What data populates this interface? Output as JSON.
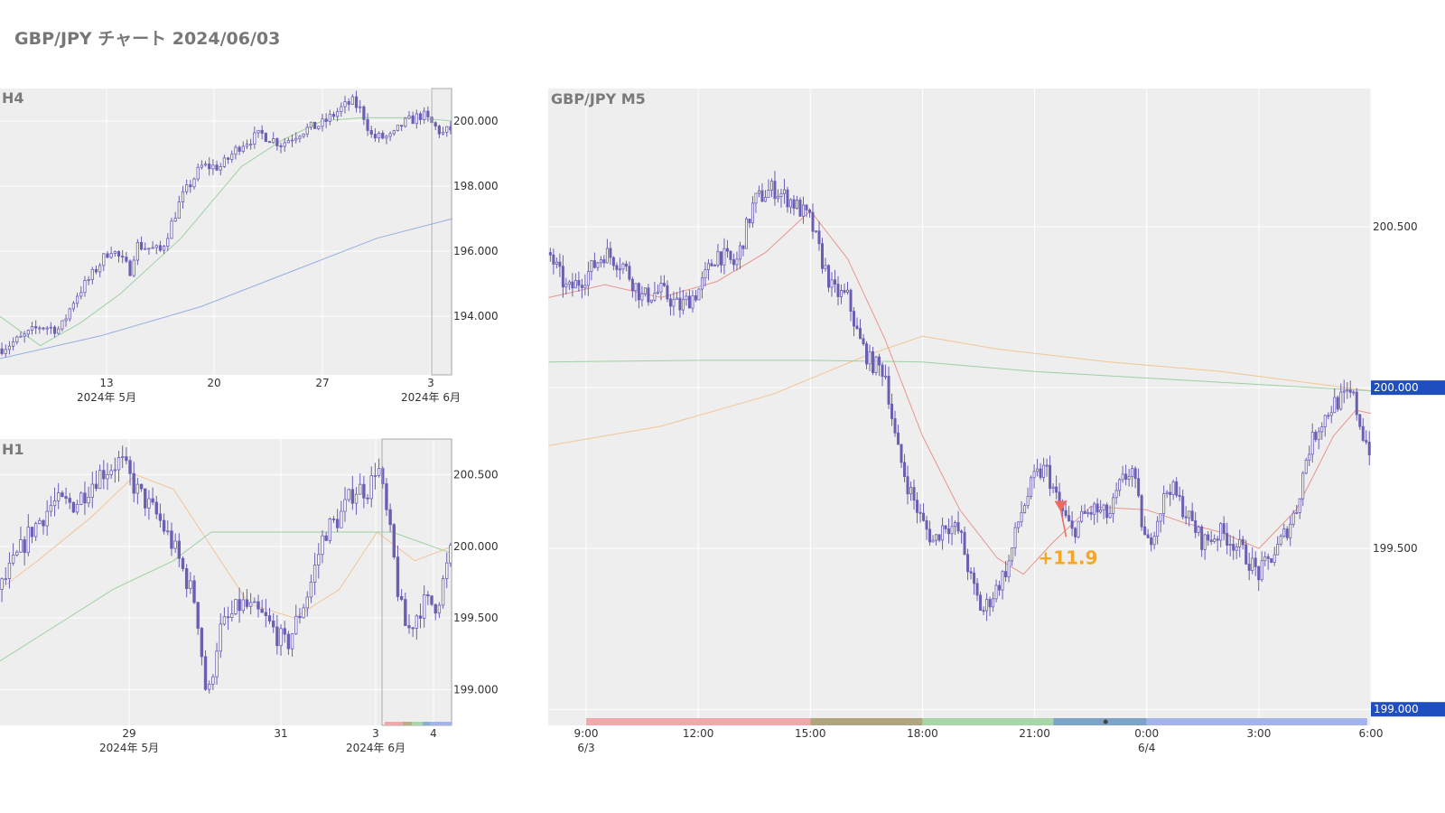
{
  "title": "GBP/JPY チャート 2024/06/03",
  "colors": {
    "plot_bg": "#eeeeee",
    "grid": "#ffffff",
    "candle": "#6a5fb3",
    "ma_red": "#e8948f",
    "ma_green": "#9fcfa3",
    "ma_orange": "#f2c597",
    "ma_blue": "#98aee0",
    "price_tag_bg": "#1f4fbf",
    "signal_arrow": "#ee6a5e",
    "profit_label": "#f5a623"
  },
  "chart_data": [
    {
      "id": "h4",
      "type": "candlestick",
      "title": "H4",
      "y_ticks": [
        "200.000",
        "198.000",
        "196.000",
        "194.000"
      ],
      "y_tick_values": [
        200,
        198,
        196,
        194
      ],
      "ylim": [
        192.2,
        201.0
      ],
      "x_ticks": [
        "13",
        "20",
        "27",
        "3"
      ],
      "x_sublabels": [
        "2024年 5月",
        "2024年 6月"
      ],
      "ohlc_path": [
        [
          0,
          193.0
        ],
        [
          4,
          193.3
        ],
        [
          8,
          193.7
        ],
        [
          12,
          193.6
        ],
        [
          15,
          194.6
        ],
        [
          18,
          195.2
        ],
        [
          22,
          196.1
        ],
        [
          26,
          195.4
        ],
        [
          27,
          196.2
        ],
        [
          32,
          196.0
        ],
        [
          36,
          197.6
        ],
        [
          40,
          198.6
        ],
        [
          44,
          198.6
        ],
        [
          48,
          199.3
        ],
        [
          52,
          199.6
        ],
        [
          56,
          199.3
        ],
        [
          60,
          199.7
        ],
        [
          64,
          199.9
        ],
        [
          68,
          200.4
        ],
        [
          70,
          200.6
        ],
        [
          72,
          200.3
        ],
        [
          74,
          199.5
        ],
        [
          78,
          199.5
        ],
        [
          80,
          199.9
        ],
        [
          84,
          200.2
        ],
        [
          88,
          199.6
        ],
        [
          90,
          199.8
        ]
      ],
      "ma_fast_path": [
        [
          0,
          194.0
        ],
        [
          8,
          193.1
        ],
        [
          16,
          193.8
        ],
        [
          24,
          194.7
        ],
        [
          36,
          196.4
        ],
        [
          48,
          198.6
        ],
        [
          56,
          199.4
        ],
        [
          64,
          200.0
        ],
        [
          72,
          200.1
        ],
        [
          82,
          200.1
        ],
        [
          90,
          200.0
        ]
      ],
      "ma_slow_path": [
        [
          0,
          192.7
        ],
        [
          20,
          193.4
        ],
        [
          40,
          194.3
        ],
        [
          60,
          195.5
        ],
        [
          75,
          196.4
        ],
        [
          90,
          197.0
        ]
      ],
      "highlight_last_bars": 5
    },
    {
      "id": "h1",
      "type": "candlestick",
      "title": "H1",
      "y_ticks": [
        "200.500",
        "200.000",
        "199.500",
        "199.000"
      ],
      "y_tick_values": [
        200.5,
        200,
        199.5,
        199
      ],
      "ylim": [
        198.75,
        200.75
      ],
      "x_ticks": [
        "29",
        "31",
        "3",
        "4"
      ],
      "x_sublabels": [
        "2024年 5月",
        "2024年 6月"
      ],
      "ohlc_path": [
        [
          0,
          199.7
        ],
        [
          4,
          199.9
        ],
        [
          8,
          200.1
        ],
        [
          14,
          200.3
        ],
        [
          20,
          200.3
        ],
        [
          26,
          200.5
        ],
        [
          32,
          200.6
        ],
        [
          36,
          200.4
        ],
        [
          42,
          200.2
        ],
        [
          46,
          200.0
        ],
        [
          52,
          199.6
        ],
        [
          55,
          198.9
        ],
        [
          58,
          199.4
        ],
        [
          64,
          199.6
        ],
        [
          70,
          199.5
        ],
        [
          76,
          199.3
        ],
        [
          82,
          199.7
        ],
        [
          86,
          200.1
        ],
        [
          90,
          200.2
        ],
        [
          94,
          200.4
        ],
        [
          98,
          200.4
        ],
        [
          100,
          200.6
        ],
        [
          104,
          200.0
        ],
        [
          106,
          199.6
        ],
        [
          108,
          199.4
        ],
        [
          112,
          199.6
        ],
        [
          116,
          199.6
        ],
        [
          120,
          200.0
        ]
      ],
      "ma_fast_path": [
        [
          0,
          199.7
        ],
        [
          10,
          199.9
        ],
        [
          24,
          200.2
        ],
        [
          36,
          200.5
        ],
        [
          46,
          200.4
        ],
        [
          56,
          200.0
        ],
        [
          66,
          199.6
        ],
        [
          78,
          199.5
        ],
        [
          90,
          199.7
        ],
        [
          100,
          200.1
        ],
        [
          110,
          199.9
        ],
        [
          120,
          200.0
        ]
      ],
      "ma_slow_path": [
        [
          0,
          199.2
        ],
        [
          12,
          199.4
        ],
        [
          30,
          199.7
        ],
        [
          46,
          199.9
        ],
        [
          56,
          200.1
        ],
        [
          70,
          200.1
        ],
        [
          90,
          200.1
        ],
        [
          104,
          200.1
        ],
        [
          120,
          199.95
        ]
      ],
      "session_bar": true,
      "highlight_last_bars": 19
    },
    {
      "id": "m5",
      "type": "candlestick",
      "title": "GBP/JPY M5",
      "y_ticks": [
        "200.500",
        "199.500"
      ],
      "y_tick_values": [
        200.5,
        199.5
      ],
      "price_tags": [
        "200.000",
        "199.000"
      ],
      "price_tag_values": [
        200.0,
        199.0
      ],
      "ylim": [
        198.95,
        200.93
      ],
      "x_ticks": [
        "9:00",
        "12:00",
        "15:00",
        "18:00",
        "21:00",
        "0:00",
        "3:00",
        "6:00"
      ],
      "x_sub_ticks": [
        "6/3",
        "6/4"
      ],
      "x_range_hours": [
        8.0,
        30.0
      ],
      "ohlc_path": [
        [
          8.0,
          200.42
        ],
        [
          8.5,
          200.3
        ],
        [
          9.0,
          200.35
        ],
        [
          9.5,
          200.42
        ],
        [
          10.0,
          200.38
        ],
        [
          10.5,
          200.28
        ],
        [
          11.0,
          200.3
        ],
        [
          11.5,
          200.25
        ],
        [
          12.0,
          200.3
        ],
        [
          12.5,
          200.42
        ],
        [
          13.0,
          200.38
        ],
        [
          13.5,
          200.58
        ],
        [
          14.0,
          200.62
        ],
        [
          14.5,
          200.58
        ],
        [
          15.0,
          200.52
        ],
        [
          15.3,
          200.4
        ],
        [
          15.6,
          200.3
        ],
        [
          16.0,
          200.28
        ],
        [
          16.3,
          200.15
        ],
        [
          16.6,
          200.08
        ],
        [
          17.0,
          200.05
        ],
        [
          17.3,
          199.82
        ],
        [
          17.6,
          199.7
        ],
        [
          18.0,
          199.58
        ],
        [
          18.3,
          199.52
        ],
        [
          18.6,
          199.58
        ],
        [
          19.0,
          199.55
        ],
        [
          19.3,
          199.4
        ],
        [
          19.6,
          199.3
        ],
        [
          20.0,
          199.38
        ],
        [
          20.3,
          199.45
        ],
        [
          20.6,
          199.6
        ],
        [
          21.0,
          199.72
        ],
        [
          21.3,
          199.75
        ],
        [
          21.6,
          199.65
        ],
        [
          22.0,
          199.55
        ],
        [
          22.3,
          199.6
        ],
        [
          22.6,
          199.62
        ],
        [
          23.0,
          199.6
        ],
        [
          23.3,
          199.7
        ],
        [
          23.6,
          199.75
        ],
        [
          24.0,
          199.5
        ],
        [
          24.3,
          199.6
        ],
        [
          24.6,
          199.7
        ],
        [
          25.0,
          199.62
        ],
        [
          25.5,
          199.52
        ],
        [
          26.0,
          199.55
        ],
        [
          26.5,
          199.5
        ],
        [
          27.0,
          199.42
        ],
        [
          27.5,
          199.5
        ],
        [
          28.0,
          199.62
        ],
        [
          28.3,
          199.8
        ],
        [
          28.6,
          199.88
        ],
        [
          29.0,
          199.95
        ],
        [
          29.5,
          199.98
        ],
        [
          29.8,
          199.85
        ],
        [
          30.0,
          199.8
        ]
      ],
      "ma_red_path": [
        [
          8.0,
          200.28
        ],
        [
          9.5,
          200.32
        ],
        [
          11.0,
          200.28
        ],
        [
          12.5,
          200.33
        ],
        [
          13.8,
          200.42
        ],
        [
          15.0,
          200.55
        ],
        [
          16.0,
          200.4
        ],
        [
          17.0,
          200.15
        ],
        [
          18.0,
          199.85
        ],
        [
          19.0,
          199.62
        ],
        [
          20.0,
          199.47
        ],
        [
          20.7,
          199.42
        ],
        [
          21.5,
          199.52
        ],
        [
          22.5,
          199.63
        ],
        [
          24.0,
          199.62
        ],
        [
          25.0,
          199.58
        ],
        [
          26.0,
          199.55
        ],
        [
          27.0,
          199.5
        ],
        [
          28.0,
          199.62
        ],
        [
          29.0,
          199.85
        ],
        [
          29.6,
          199.93
        ],
        [
          30.0,
          199.92
        ]
      ],
      "ma_green_path": [
        [
          8.0,
          200.08
        ],
        [
          12.0,
          200.085
        ],
        [
          15.0,
          200.085
        ],
        [
          18.0,
          200.08
        ],
        [
          21.0,
          200.05
        ],
        [
          24.0,
          200.03
        ],
        [
          27.0,
          200.01
        ],
        [
          30.0,
          199.99
        ]
      ],
      "ma_orange_path": [
        [
          8.0,
          199.82
        ],
        [
          11.0,
          199.88
        ],
        [
          14.0,
          199.98
        ],
        [
          16.5,
          200.1
        ],
        [
          18.0,
          200.16
        ],
        [
          20.0,
          200.12
        ],
        [
          23.0,
          200.08
        ],
        [
          26.0,
          200.05
        ],
        [
          28.0,
          200.02
        ],
        [
          30.0,
          199.99
        ]
      ],
      "signal": {
        "time_h": 21.7,
        "price": 199.62,
        "label": "+11.9"
      },
      "session_bar": true
    }
  ]
}
